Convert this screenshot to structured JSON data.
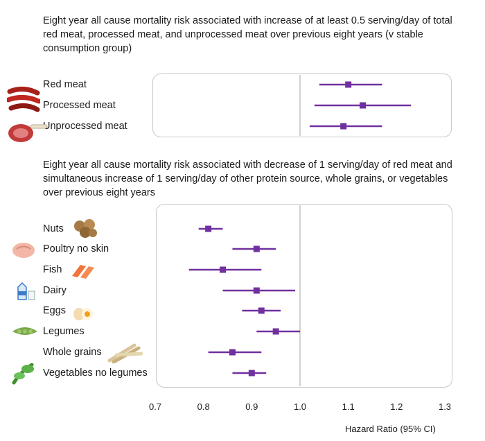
{
  "chart_data": {
    "type": "forest",
    "xlabel": "Hazard Ratio (95% CI)",
    "xlim": [
      0.7,
      1.3
    ],
    "ticks": [
      "0.7",
      "0.8",
      "0.9",
      "1.0",
      "1.1",
      "1.2",
      "1.3"
    ],
    "reference_line": 1.0,
    "marker_color": "#7030a0",
    "panels": [
      {
        "title": "Eight year all cause mortality risk associated with increase of at least 0.5 serving/day of total red meat, processed meat, and unprocessed meat over previous eight years (v stable consumption group)",
        "rows": [
          {
            "label": "Red meat",
            "icon": "red-meat-icon",
            "hr": 1.1,
            "low": 1.04,
            "high": 1.17
          },
          {
            "label": "Processed meat",
            "icon": "sausage-icon",
            "hr": 1.13,
            "low": 1.03,
            "high": 1.23
          },
          {
            "label": "Unprocessed meat",
            "icon": "steak-icon",
            "hr": 1.09,
            "low": 1.02,
            "high": 1.17
          }
        ]
      },
      {
        "title": "Eight year all cause mortality risk associated with decrease of 1 serving/day of red meat and simultaneous increase of 1 serving/day of other protein source, whole grains, or vegetables over previous eight years",
        "rows": [
          {
            "label": "Nuts",
            "icon": "nuts-icon",
            "hr": 0.81,
            "low": 0.79,
            "high": 0.84
          },
          {
            "label": "Poultry no skin",
            "icon": "poultry-icon",
            "hr": 0.91,
            "low": 0.86,
            "high": 0.95
          },
          {
            "label": "Fish",
            "icon": "fish-icon",
            "hr": 0.84,
            "low": 0.77,
            "high": 0.92
          },
          {
            "label": "Dairy",
            "icon": "dairy-icon",
            "hr": 0.91,
            "low": 0.84,
            "high": 0.99
          },
          {
            "label": "Eggs",
            "icon": "eggs-icon",
            "hr": 0.92,
            "low": 0.88,
            "high": 0.96
          },
          {
            "label": "Legumes",
            "icon": "legumes-icon",
            "hr": 0.95,
            "low": 0.91,
            "high": 1.0
          },
          {
            "label": "Whole grains",
            "icon": "whole-grains-icon",
            "hr": 0.86,
            "low": 0.81,
            "high": 0.92
          },
          {
            "label": "Vegetables no legumes",
            "icon": "vegetables-icon",
            "hr": 0.9,
            "low": 0.86,
            "high": 0.93
          }
        ]
      }
    ]
  }
}
